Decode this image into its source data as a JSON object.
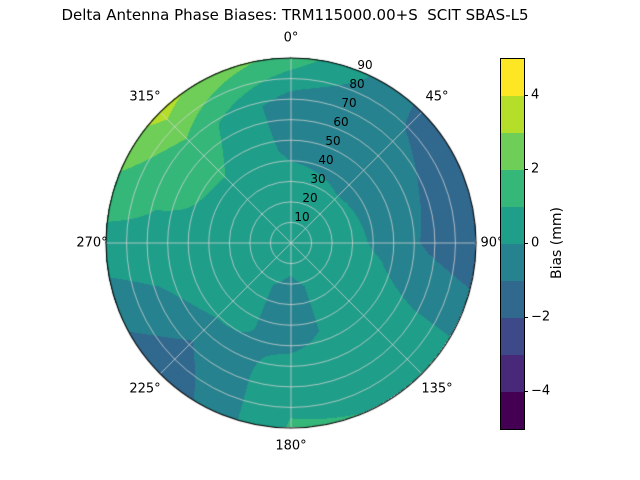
{
  "chart_data": {
    "type": "heatmap",
    "projection": "polar",
    "title": "Delta Antenna Phase Biases: TRM115000.00+S  SCIT SBAS-L5",
    "theta_zero_location": "top",
    "theta_direction": "clockwise",
    "theta_tick_labels": [
      "0°",
      "45°",
      "90°",
      "135°",
      "180°",
      "225°",
      "270°",
      "315°"
    ],
    "r_tick_labels": [
      "10",
      "20",
      "30",
      "40",
      "50",
      "60",
      "70",
      "80",
      "90"
    ],
    "r_range": [
      0,
      90
    ],
    "grid_lines": "on",
    "grid": {
      "azimuth_deg": [
        0,
        45,
        90,
        135,
        180,
        225,
        270,
        315,
        360
      ],
      "radius_deg": [
        0,
        22.5,
        45,
        67.5,
        90
      ],
      "bias_mm": [
        [
          0.5,
          0.6,
          -0.2,
          -0.6,
          1.6
        ],
        [
          0.5,
          0.3,
          -0.4,
          -0.8,
          -1.2
        ],
        [
          0.5,
          0.4,
          -0.2,
          -1.2,
          -1.9
        ],
        [
          0.5,
          0.3,
          0.6,
          0.7,
          0.9
        ],
        [
          0.5,
          -0.2,
          -0.4,
          0.6,
          1.1
        ],
        [
          0.5,
          0.2,
          0.4,
          -1.0,
          -1.9
        ],
        [
          0.5,
          0.6,
          0.9,
          0.7,
          0.6
        ],
        [
          0.5,
          0.7,
          1.0,
          1.7,
          3.4
        ],
        [
          0.5,
          0.6,
          -0.2,
          -0.6,
          1.6
        ]
      ]
    },
    "colorbar": {
      "label": "Bias (mm)",
      "min": -5,
      "max": 5,
      "level_step": 1,
      "colormap": "viridis",
      "band_colors": [
        "#440154",
        "#482878",
        "#3e4989",
        "#31688e",
        "#26828e",
        "#1f9e89",
        "#35b779",
        "#6ece58",
        "#b5de2b",
        "#fde725"
      ],
      "tick_labels": [
        "4",
        "2",
        "0",
        "−2",
        "−4"
      ],
      "tick_values": [
        4,
        2,
        0,
        -2,
        -4
      ]
    }
  }
}
